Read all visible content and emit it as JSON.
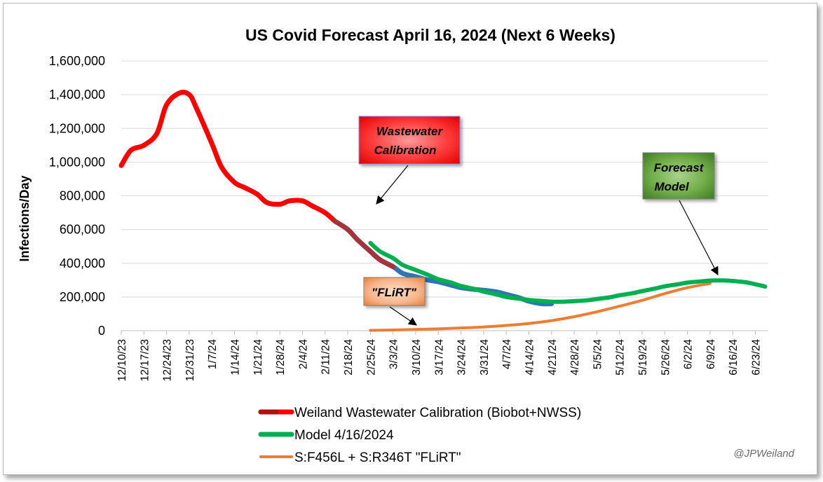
{
  "chart_data": {
    "type": "line",
    "title": "US Covid Forecast April 16, 2024 (Next 6 Weeks)",
    "xlabel": "",
    "ylabel": "Infections/Day",
    "ylim": [
      0,
      1600000
    ],
    "yticks": [
      0,
      200000,
      400000,
      600000,
      800000,
      1000000,
      1200000,
      1400000,
      1600000
    ],
    "ytick_labels": [
      "0",
      "200,000",
      "400,000",
      "600,000",
      "800,000",
      "1,000,000",
      "1,200,000",
      "1,400,000",
      "1,600,000"
    ],
    "x_tick_labels": [
      "12/10/23",
      "12/17/23",
      "12/24/23",
      "12/31/23",
      "1/7/24",
      "1/14/24",
      "1/21/24",
      "1/28/24",
      "2/4/24",
      "2/11/24",
      "2/18/24",
      "2/25/24",
      "3/3/24",
      "3/10/24",
      "3/17/24",
      "3/24/24",
      "3/31/24",
      "4/7/24",
      "4/14/24",
      "4/21/24",
      "4/28/24",
      "5/5/24",
      "5/12/24",
      "5/19/24",
      "5/26/24",
      "6/2/24",
      "6/9/24",
      "6/16/24",
      "6/23/24"
    ],
    "grid": true,
    "legend_position": "bottom",
    "series": [
      {
        "name": "Weiland Wastewater Calibration (Biobot+NWSS)",
        "color": "#ff0000",
        "x": [
          "12/10/23",
          "12/13/23",
          "12/17/23",
          "12/21/23",
          "12/24/23",
          "12/28/23",
          "12/31/23",
          "1/2/24",
          "1/7/24",
          "1/10/24",
          "1/14/24",
          "1/17/24",
          "1/21/24",
          "1/24/24",
          "1/28/24",
          "1/31/24",
          "2/4/24",
          "2/7/24",
          "2/11/24",
          "2/14/24",
          "2/18/24",
          "2/21/24",
          "2/25/24",
          "2/28/24",
          "3/3/24",
          "3/6/24",
          "3/10/24",
          "3/14/24",
          "3/17/24",
          "3/21/24",
          "3/24/24",
          "3/28/24",
          "3/31/24",
          "4/4/24",
          "4/7/24",
          "4/11/24",
          "4/14/24",
          "4/18/24",
          "4/21/24"
        ],
        "values": [
          980000,
          1070000,
          1100000,
          1170000,
          1340000,
          1410000,
          1400000,
          1330000,
          1110000,
          970000,
          880000,
          850000,
          810000,
          760000,
          750000,
          770000,
          770000,
          740000,
          700000,
          650000,
          600000,
          540000,
          470000,
          420000,
          380000,
          340000,
          320000,
          300000,
          290000,
          270000,
          255000,
          245000,
          240000,
          230000,
          215000,
          195000,
          175000,
          160000,
          160000
        ]
      },
      {
        "name": "Model 4/16/2024",
        "color": "#00b050",
        "x": [
          "2/25/24",
          "2/28/24",
          "3/3/24",
          "3/6/24",
          "3/10/24",
          "3/14/24",
          "3/17/24",
          "3/21/24",
          "3/24/24",
          "3/28/24",
          "3/31/24",
          "4/4/24",
          "4/7/24",
          "4/11/24",
          "4/14/24",
          "4/18/24",
          "4/21/24",
          "4/25/24",
          "4/28/24",
          "5/2/24",
          "5/5/24",
          "5/9/24",
          "5/12/24",
          "5/16/24",
          "5/19/24",
          "5/23/24",
          "5/26/24",
          "5/30/24",
          "6/2/24",
          "6/6/24",
          "6/9/24",
          "6/13/24",
          "6/16/24",
          "6/20/24",
          "6/23/24",
          "6/26/24"
        ],
        "values": [
          520000,
          470000,
          430000,
          390000,
          360000,
          330000,
          305000,
          285000,
          265000,
          248000,
          232000,
          215000,
          200000,
          190000,
          182000,
          176000,
          172000,
          172000,
          175000,
          180000,
          188000,
          198000,
          210000,
          222000,
          235000,
          250000,
          263000,
          275000,
          285000,
          292000,
          297000,
          298000,
          295000,
          287000,
          275000,
          262000
        ]
      },
      {
        "name": "S:F456L + S:R346T \"FLiRT\"",
        "color": "#ed7d31",
        "x": [
          "2/25/24",
          "3/3/24",
          "3/10/24",
          "3/17/24",
          "3/24/24",
          "3/31/24",
          "4/7/24",
          "4/14/24",
          "4/21/24",
          "4/28/24",
          "5/5/24",
          "5/12/24",
          "5/19/24",
          "5/26/24",
          "6/2/24",
          "6/9/24"
        ],
        "values": [
          2000,
          4000,
          7000,
          11000,
          16000,
          22000,
          31000,
          43000,
          60000,
          83000,
          112000,
          145000,
          180000,
          220000,
          255000,
          280000
        ]
      }
    ],
    "annotations": [
      {
        "text_lines": [
          "Wastewater",
          "Calibration"
        ]
      },
      {
        "text_lines": [
          "Forecast",
          "Model"
        ]
      },
      {
        "text_lines": [
          "\"FLiRT\""
        ]
      }
    ],
    "watermark": "@JPWeiland"
  }
}
